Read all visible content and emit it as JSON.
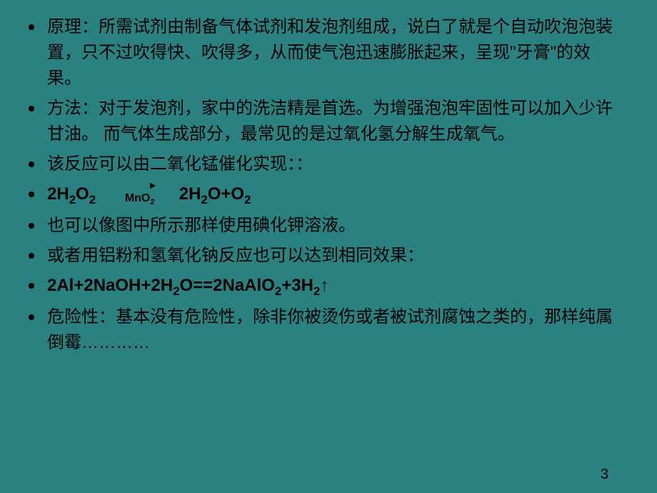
{
  "background_color": "#2b8080",
  "text_color": "#000000",
  "font_size_body": 24,
  "font_size_catalyst": 16,
  "font_size_pagenum": 20,
  "bullet_color": "#000000",
  "page_number": "3",
  "items": {
    "b1": "原理：所需试剂由制备气体试剂和发泡剂组成，说白了就是个自动吹泡泡装置，只不过吹得快、吹得多，从而使气泡迅速膨胀起来，呈现\"牙膏\"的效果。",
    "b2": "方法：对于发泡剂，家中的洗洁精是首选。为增强泡泡牢固性可以加入少许甘油。 而气体生成部分，最常见的是过氧化氢分解生成氧气。",
    "b3": "该反应可以由二氧化锰催化实现：：",
    "b4_left": "2H",
    "b4_left2": "O",
    "b4_catalyst": "MnO",
    "b4_right": "2H",
    "b4_right2": "O+O",
    "b5": "也可以像图中所示那样使用碘化钾溶液。",
    "b6": "或者用铝粉和氢氧化钠反应也可以达到相同效果：",
    "b7": "2Al+2NaOH+2H",
    "b7_2": "O==2NaAlO",
    "b7_3": "+3H",
    "b7_arrow": "↑",
    "b8": "危险性：基本没有危险性，除非你被烫伤或者被试剂腐蚀之类的，那样纯属倒霉…………"
  },
  "subscripts": {
    "two": "2"
  }
}
